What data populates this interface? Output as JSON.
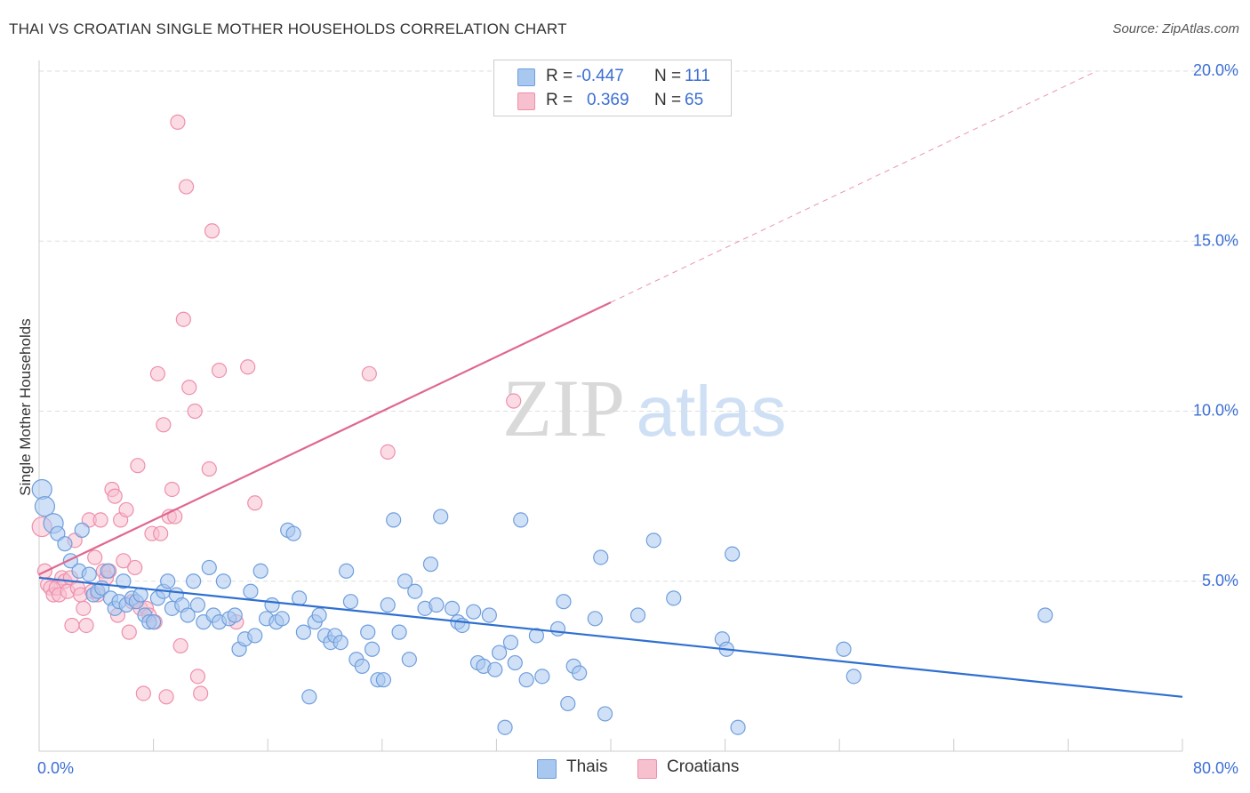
{
  "title": "THAI VS CROATIAN SINGLE MOTHER HOUSEHOLDS CORRELATION CHART",
  "source": "Source: ZipAtlas.com",
  "watermark": {
    "zip": "ZIP",
    "atlas": "atlas"
  },
  "legend_stats": [
    {
      "r_label": "R =",
      "r_value": "-0.447",
      "n_label": "N =",
      "n_value": "111"
    },
    {
      "r_label": "R =",
      "r_value": "0.369",
      "n_label": "N =",
      "n_value": "65"
    }
  ],
  "colors": {
    "thais_fill": "#a9c8f0",
    "thais_stroke": "#6f9edc",
    "thais_line": "#2f6fd0",
    "croatians_fill": "#f7c0cf",
    "croatians_stroke": "#ee8fab",
    "croatians_line": "#e06890",
    "axis_label": "#3b6fd4",
    "grid": "#dddddd"
  },
  "chart_data": {
    "type": "scatter",
    "ylabel": "Single Mother Households",
    "xlim": [
      0,
      80
    ],
    "ylim": [
      0,
      20
    ],
    "x_tick_labels": [
      "0.0%",
      "80.0%"
    ],
    "y_ticks": [
      5,
      10,
      15,
      20
    ],
    "y_tick_labels": [
      "5.0%",
      "10.0%",
      "15.0%",
      "20.0%"
    ],
    "grid": "horizontal dashed",
    "legend_position": "top-center and bottom",
    "series": [
      {
        "name": "Thais",
        "trend": {
          "x": [
            0,
            80
          ],
          "y": [
            5.1,
            1.6
          ]
        },
        "points": [
          [
            0.2,
            7.7
          ],
          [
            0.4,
            7.2
          ],
          [
            1.0,
            6.7
          ],
          [
            1.3,
            6.4
          ],
          [
            1.8,
            6.1
          ],
          [
            2.2,
            5.6
          ],
          [
            2.8,
            5.3
          ],
          [
            3.0,
            6.5
          ],
          [
            3.5,
            5.2
          ],
          [
            3.8,
            4.6
          ],
          [
            4.1,
            4.7
          ],
          [
            4.4,
            4.8
          ],
          [
            4.8,
            5.3
          ],
          [
            5.0,
            4.5
          ],
          [
            5.3,
            4.2
          ],
          [
            5.6,
            4.4
          ],
          [
            5.9,
            5.0
          ],
          [
            6.1,
            4.3
          ],
          [
            6.5,
            4.5
          ],
          [
            6.8,
            4.4
          ],
          [
            7.1,
            4.6
          ],
          [
            7.4,
            4.0
          ],
          [
            7.7,
            3.8
          ],
          [
            8.0,
            3.8
          ],
          [
            8.3,
            4.5
          ],
          [
            8.7,
            4.7
          ],
          [
            9.0,
            5.0
          ],
          [
            9.3,
            4.2
          ],
          [
            9.6,
            4.6
          ],
          [
            10.0,
            4.3
          ],
          [
            10.4,
            4.0
          ],
          [
            10.8,
            5.0
          ],
          [
            11.1,
            4.3
          ],
          [
            11.5,
            3.8
          ],
          [
            11.9,
            5.4
          ],
          [
            12.2,
            4.0
          ],
          [
            12.6,
            3.8
          ],
          [
            12.9,
            5.0
          ],
          [
            13.3,
            3.9
          ],
          [
            13.7,
            4.0
          ],
          [
            14.0,
            3.0
          ],
          [
            14.4,
            3.3
          ],
          [
            14.8,
            4.7
          ],
          [
            15.1,
            3.4
          ],
          [
            15.5,
            5.3
          ],
          [
            15.9,
            3.9
          ],
          [
            16.3,
            4.3
          ],
          [
            16.6,
            3.8
          ],
          [
            17.0,
            3.9
          ],
          [
            17.4,
            6.5
          ],
          [
            17.8,
            6.4
          ],
          [
            18.2,
            4.5
          ],
          [
            18.5,
            3.5
          ],
          [
            18.9,
            1.6
          ],
          [
            19.3,
            3.8
          ],
          [
            19.6,
            4.0
          ],
          [
            20.0,
            3.4
          ],
          [
            20.4,
            3.2
          ],
          [
            20.7,
            3.4
          ],
          [
            21.1,
            3.2
          ],
          [
            21.5,
            5.3
          ],
          [
            21.8,
            4.4
          ],
          [
            22.2,
            2.7
          ],
          [
            22.6,
            2.5
          ],
          [
            23.0,
            3.5
          ],
          [
            23.3,
            3.0
          ],
          [
            23.7,
            2.1
          ],
          [
            24.1,
            2.1
          ],
          [
            24.4,
            4.3
          ],
          [
            24.8,
            6.8
          ],
          [
            25.2,
            3.5
          ],
          [
            25.6,
            5.0
          ],
          [
            25.9,
            2.7
          ],
          [
            26.3,
            4.7
          ],
          [
            27.0,
            4.2
          ],
          [
            27.4,
            5.5
          ],
          [
            27.8,
            4.3
          ],
          [
            28.1,
            6.9
          ],
          [
            28.9,
            4.2
          ],
          [
            29.3,
            3.8
          ],
          [
            29.6,
            3.7
          ],
          [
            30.4,
            4.1
          ],
          [
            30.7,
            2.6
          ],
          [
            31.1,
            2.5
          ],
          [
            31.5,
            4.0
          ],
          [
            31.9,
            2.4
          ],
          [
            32.2,
            2.9
          ],
          [
            32.6,
            0.7
          ],
          [
            33.0,
            3.2
          ],
          [
            33.3,
            2.6
          ],
          [
            33.7,
            6.8
          ],
          [
            34.1,
            2.1
          ],
          [
            34.8,
            3.4
          ],
          [
            35.2,
            2.2
          ],
          [
            36.3,
            3.6
          ],
          [
            36.7,
            4.4
          ],
          [
            37.0,
            1.4
          ],
          [
            37.4,
            2.5
          ],
          [
            37.8,
            2.3
          ],
          [
            38.9,
            3.9
          ],
          [
            39.3,
            5.7
          ],
          [
            39.6,
            1.1
          ],
          [
            41.9,
            4.0
          ],
          [
            43.0,
            6.2
          ],
          [
            44.4,
            4.5
          ],
          [
            47.8,
            3.3
          ],
          [
            48.1,
            3.0
          ],
          [
            48.5,
            5.8
          ],
          [
            48.9,
            0.7
          ],
          [
            56.3,
            3.0
          ],
          [
            57.0,
            2.2
          ],
          [
            70.4,
            4.0
          ]
        ]
      },
      {
        "name": "Croatians",
        "trend": {
          "x": [
            0,
            40
          ],
          "y": [
            5.2,
            13.2
          ]
        },
        "trend_dashed": {
          "x": [
            40,
            80
          ],
          "y": [
            13.2,
            21.2
          ]
        },
        "points": [
          [
            0.2,
            6.6
          ],
          [
            0.4,
            5.3
          ],
          [
            0.6,
            4.9
          ],
          [
            0.8,
            4.8
          ],
          [
            1.0,
            4.6
          ],
          [
            1.2,
            4.8
          ],
          [
            1.4,
            4.6
          ],
          [
            1.6,
            5.1
          ],
          [
            1.8,
            5.0
          ],
          [
            2.0,
            4.7
          ],
          [
            2.2,
            5.1
          ],
          [
            2.3,
            3.7
          ],
          [
            2.5,
            6.2
          ],
          [
            2.7,
            4.8
          ],
          [
            2.9,
            4.6
          ],
          [
            3.1,
            4.2
          ],
          [
            3.3,
            3.7
          ],
          [
            3.5,
            6.8
          ],
          [
            3.7,
            4.7
          ],
          [
            3.9,
            5.7
          ],
          [
            4.1,
            4.6
          ],
          [
            4.3,
            6.8
          ],
          [
            4.5,
            5.3
          ],
          [
            4.7,
            5.1
          ],
          [
            4.9,
            5.3
          ],
          [
            5.1,
            7.7
          ],
          [
            5.3,
            7.5
          ],
          [
            5.5,
            4.0
          ],
          [
            5.7,
            6.8
          ],
          [
            5.9,
            5.6
          ],
          [
            6.1,
            7.1
          ],
          [
            6.3,
            3.5
          ],
          [
            6.5,
            4.4
          ],
          [
            6.7,
            5.4
          ],
          [
            6.9,
            8.4
          ],
          [
            7.1,
            4.2
          ],
          [
            7.3,
            1.7
          ],
          [
            7.5,
            4.2
          ],
          [
            7.7,
            4.0
          ],
          [
            7.9,
            6.4
          ],
          [
            8.1,
            3.8
          ],
          [
            8.3,
            11.1
          ],
          [
            8.5,
            6.4
          ],
          [
            8.7,
            9.6
          ],
          [
            8.9,
            1.6
          ],
          [
            9.1,
            6.9
          ],
          [
            9.3,
            7.7
          ],
          [
            9.5,
            6.9
          ],
          [
            9.7,
            18.5
          ],
          [
            9.9,
            3.1
          ],
          [
            10.1,
            12.7
          ],
          [
            10.3,
            16.6
          ],
          [
            10.5,
            10.7
          ],
          [
            10.9,
            10.0
          ],
          [
            11.1,
            2.2
          ],
          [
            11.3,
            1.7
          ],
          [
            11.9,
            8.3
          ],
          [
            12.1,
            15.3
          ],
          [
            12.6,
            11.2
          ],
          [
            13.8,
            3.8
          ],
          [
            14.6,
            11.3
          ],
          [
            15.1,
            7.3
          ],
          [
            23.1,
            11.1
          ],
          [
            24.4,
            8.8
          ],
          [
            33.2,
            10.3
          ]
        ]
      }
    ]
  }
}
